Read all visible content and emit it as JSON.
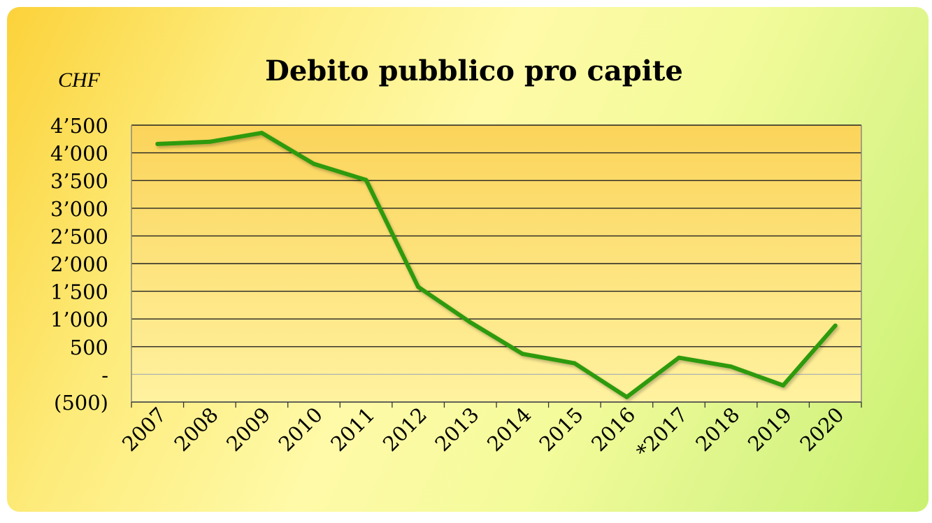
{
  "chart_data": {
    "type": "line",
    "title": "Debito pubblico pro capite",
    "ylabel": "CHF",
    "xlabel": "",
    "categories": [
      "2007",
      "2008",
      "2009",
      "2010",
      "2011",
      "2012",
      "2013",
      "2014",
      "2015",
      "2016",
      "*2017",
      "2018",
      "2019",
      "2020"
    ],
    "series": [
      {
        "values": [
          4160,
          4200,
          4360,
          3800,
          3510,
          1580,
          940,
          370,
          200,
          -410,
          300,
          140,
          -200,
          880
        ]
      }
    ],
    "ylim": [
      -500,
      4500
    ],
    "yticks": [
      {
        "value": 4500,
        "label": "4’500"
      },
      {
        "value": 4000,
        "label": "4’000"
      },
      {
        "value": 3500,
        "label": "3’500"
      },
      {
        "value": 3000,
        "label": "3’000"
      },
      {
        "value": 2500,
        "label": "2’500"
      },
      {
        "value": 2000,
        "label": "2’000"
      },
      {
        "value": 1500,
        "label": "1’500"
      },
      {
        "value": 1000,
        "label": "1’000"
      },
      {
        "value": 500,
        "label": "500"
      },
      {
        "value": 0,
        "label": "-"
      },
      {
        "value": -500,
        "label": "(500)"
      }
    ],
    "grid": true,
    "legend": "none",
    "colors": {
      "line": "#2e9a0c",
      "plot_bg_top": "#fbd45a",
      "plot_bg_bottom": "#fff2a0",
      "grid": "#222222",
      "zero_line": "#b0b0b0",
      "text": "#000000"
    }
  }
}
